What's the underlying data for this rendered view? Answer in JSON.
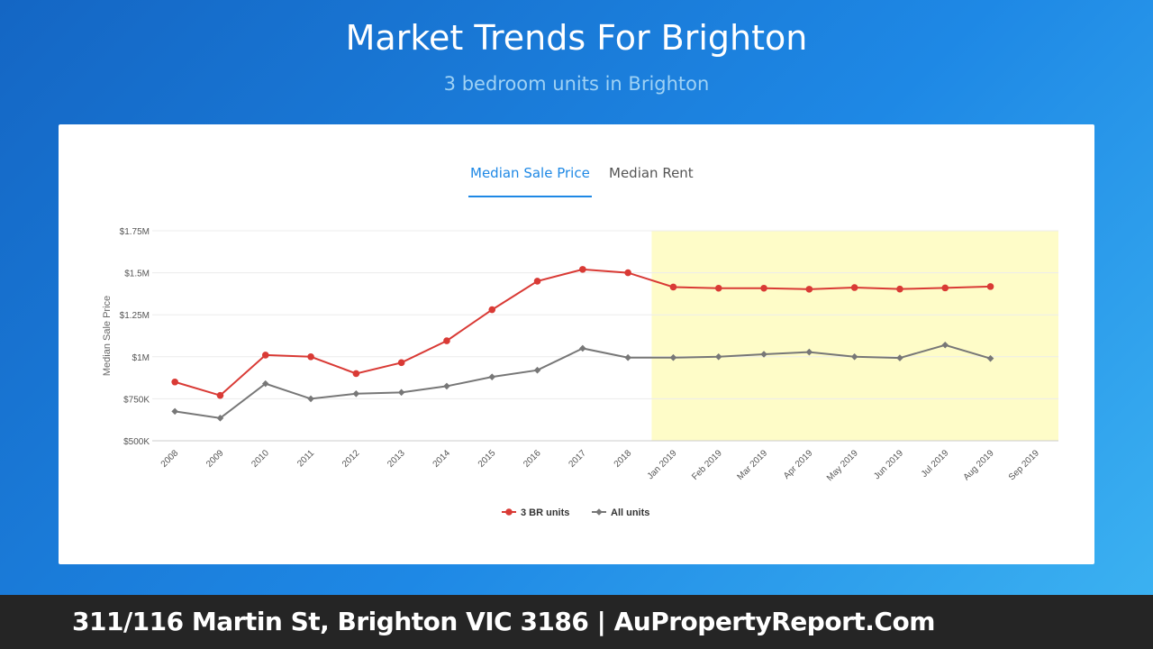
{
  "header": {
    "title": "Market Trends For Brighton",
    "subtitle": "3 bedroom units in Brighton"
  },
  "tabs": [
    {
      "label": "Median Sale Price",
      "active": true
    },
    {
      "label": "Median Rent",
      "active": false
    }
  ],
  "colors": {
    "series_3br": "#d93a35",
    "series_all": "#777777",
    "highlight": "#fefcc8",
    "active_tab": "#1e88e5"
  },
  "chart_data": {
    "type": "line",
    "title": "",
    "xlabel": "",
    "ylabel": "Median Sale Price",
    "ylim": [
      500000,
      1750000
    ],
    "yticks": [
      500000,
      750000,
      1000000,
      1250000,
      1500000,
      1750000
    ],
    "ytick_labels": [
      "$500K",
      "$750K",
      "$1M",
      "$1.25M",
      "$1.5M",
      "$1.75M"
    ],
    "categories": [
      "2008",
      "2009",
      "2010",
      "2011",
      "2012",
      "2013",
      "2014",
      "2015",
      "2016",
      "2017",
      "2018",
      "Jan 2019",
      "Feb 2019",
      "Mar 2019",
      "Apr 2019",
      "May 2019",
      "Jun 2019",
      "Jul 2019",
      "Aug 2019",
      "Sep 2019"
    ],
    "highlight_range": [
      "Jan 2019",
      "Sep 2019"
    ],
    "grid": true,
    "legend_position": "bottom",
    "series": [
      {
        "name": "3 BR units",
        "marker": "circle",
        "values": [
          850000,
          770000,
          1010000,
          1000000,
          900000,
          965000,
          1095000,
          1280000,
          1450000,
          1520000,
          1500000,
          1415000,
          1408000,
          1408000,
          1402000,
          1412000,
          1403000,
          1410000,
          1418000,
          null
        ]
      },
      {
        "name": "All units",
        "marker": "diamond",
        "values": [
          675000,
          635000,
          840000,
          750000,
          780000,
          788000,
          825000,
          880000,
          920000,
          1050000,
          995000,
          995000,
          1000000,
          1015000,
          1028000,
          1000000,
          993000,
          1070000,
          990000,
          null
        ]
      }
    ]
  },
  "footer": {
    "text": "311/116 Martin St, Brighton VIC 3186 | AuPropertyReport.Com"
  }
}
